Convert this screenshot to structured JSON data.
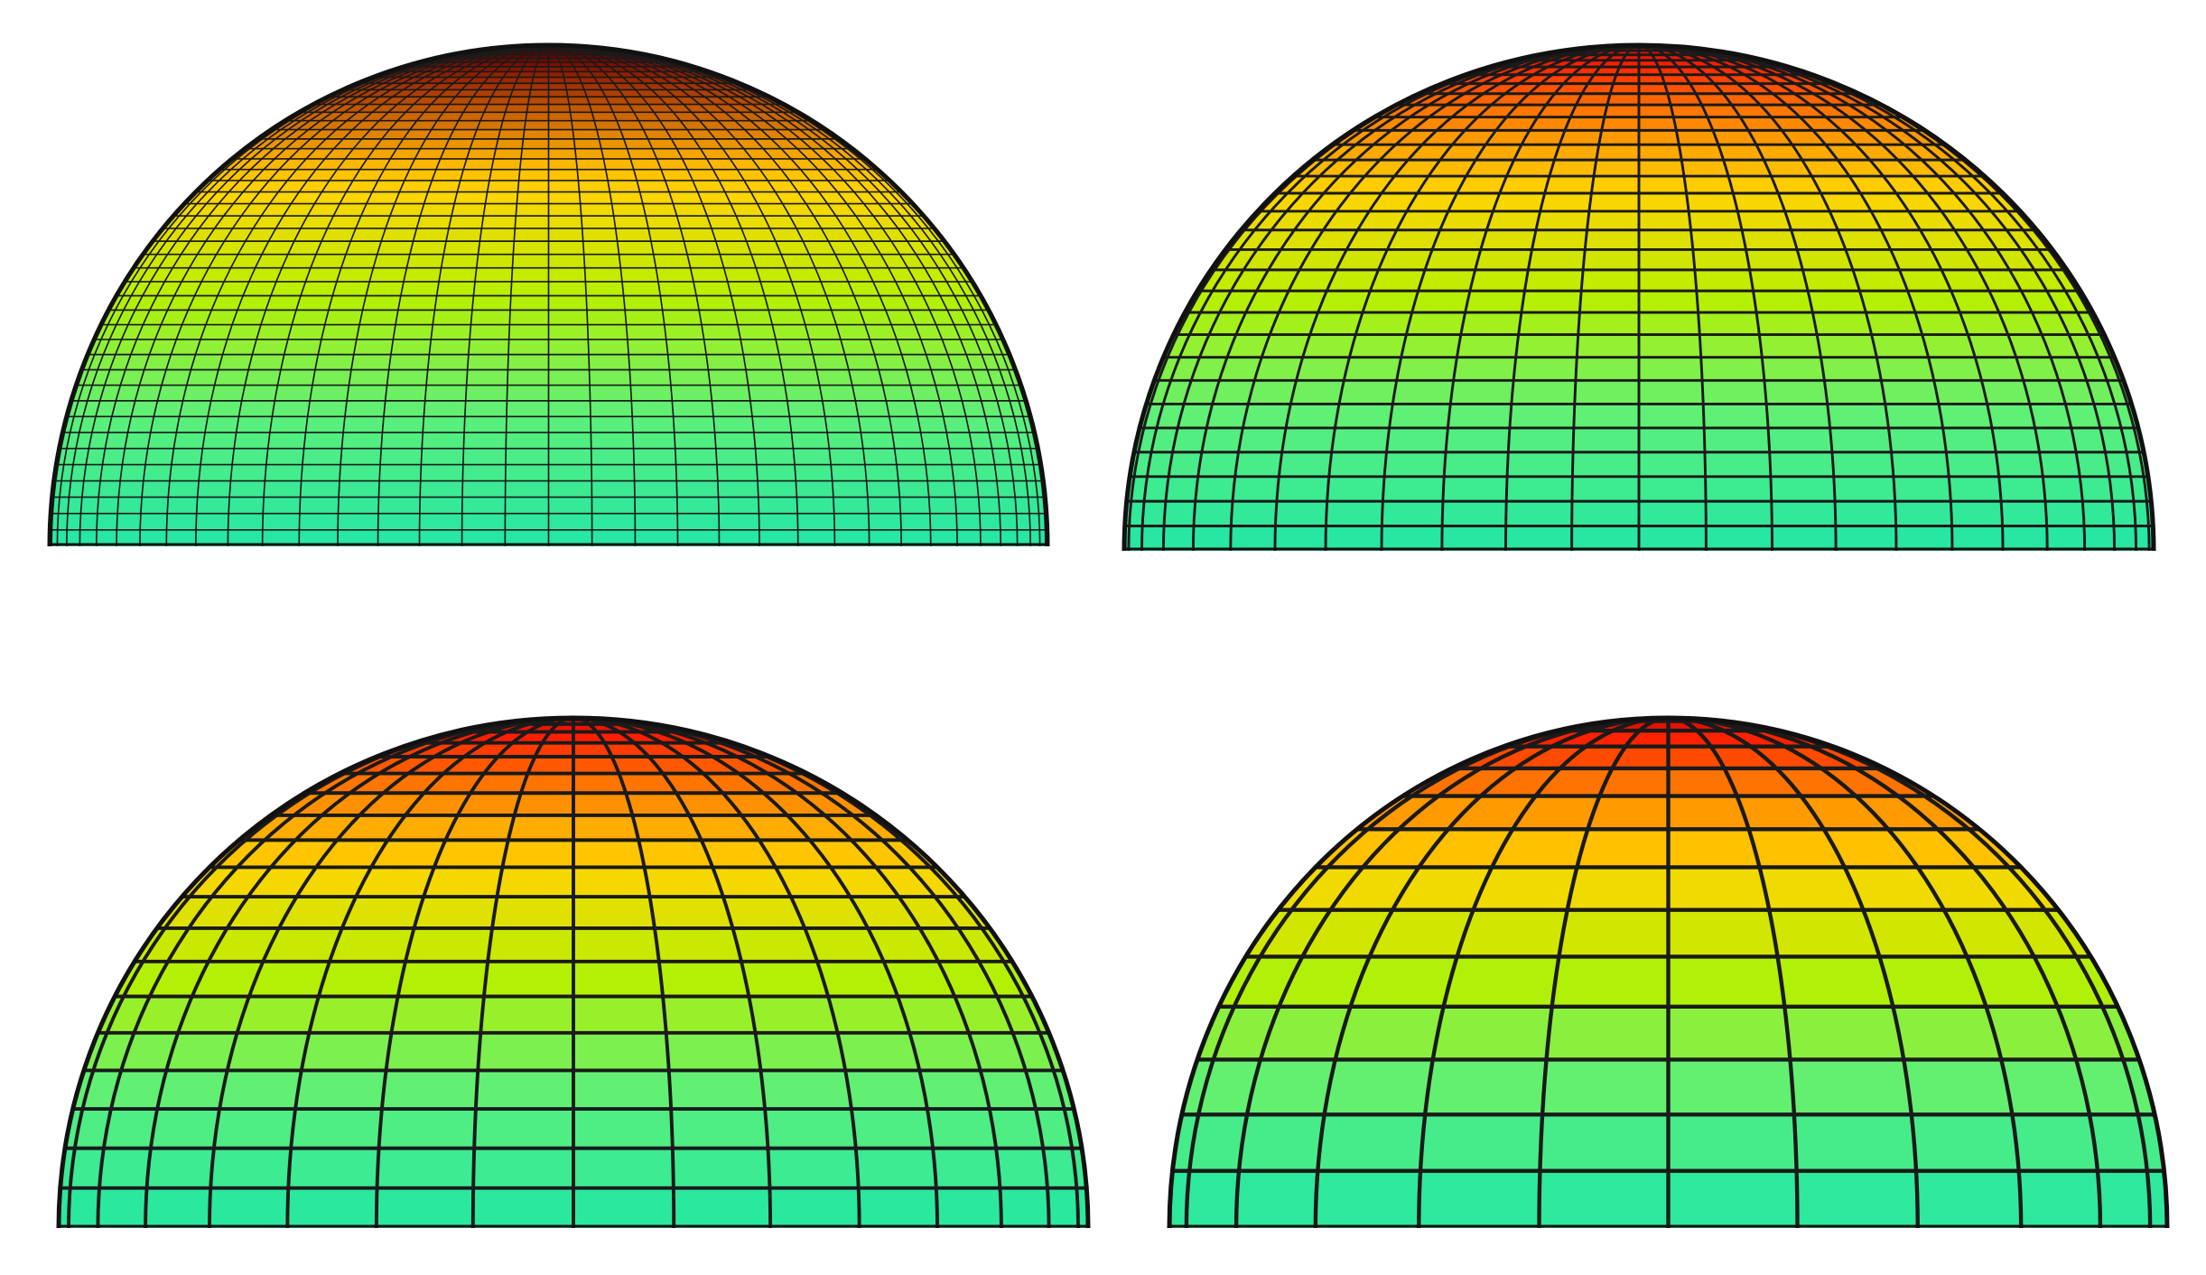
{
  "panels": [
    {
      "id": "panel-tl",
      "meridians": 72,
      "parallels": 48,
      "dark_top": 0.45
    },
    {
      "id": "panel-tr",
      "meridians": 48,
      "parallels": 32,
      "dark_top": 0.0
    },
    {
      "id": "panel-bl",
      "meridians": 32,
      "parallels": 20,
      "dark_top": 0.0
    },
    {
      "id": "panel-br",
      "meridians": 24,
      "parallels": 14,
      "dark_top": 0.0
    }
  ],
  "colormap": [
    "#b10000",
    "#ff1a00",
    "#ff7a00",
    "#ffd400",
    "#b8f000",
    "#5cf07a",
    "#22e6a6"
  ],
  "colors": {
    "mesh_line": "#1a1a1a",
    "outline": "#111111",
    "background": "#ffffff"
  }
}
